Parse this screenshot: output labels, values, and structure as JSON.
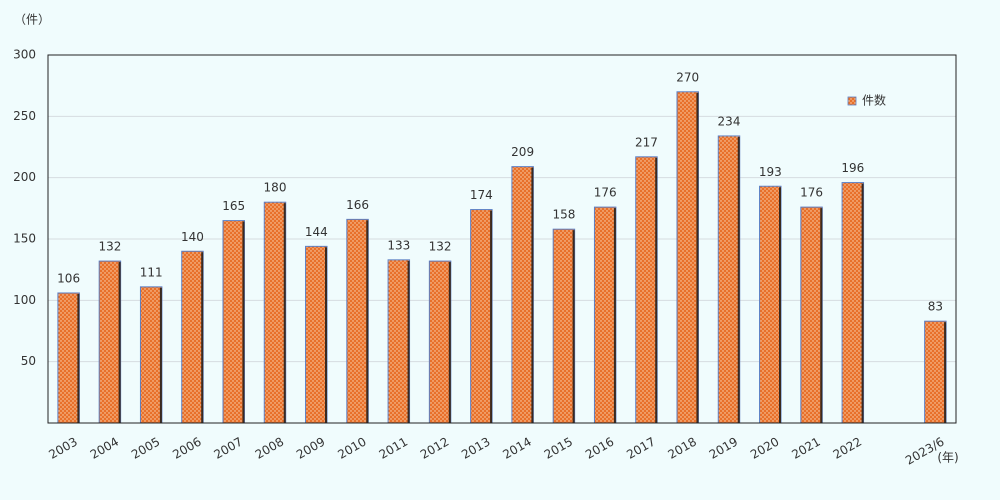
{
  "chart_data": {
    "type": "bar",
    "y_label": "（件）",
    "x_unit": "(年)",
    "categories": [
      "2003",
      "2004",
      "2005",
      "2006",
      "2007",
      "2008",
      "2009",
      "2010",
      "2011",
      "2012",
      "2013",
      "2014",
      "2015",
      "2016",
      "2017",
      "2018",
      "2019",
      "2020",
      "2021",
      "2022",
      null,
      "2023/6"
    ],
    "series": [
      {
        "name": "件数",
        "color": "#e8702a",
        "values": [
          106,
          132,
          111,
          140,
          165,
          180,
          144,
          166,
          133,
          132,
          174,
          209,
          158,
          176,
          217,
          270,
          234,
          193,
          176,
          196,
          null,
          83
        ]
      }
    ],
    "ylim": [
      0,
      300
    ],
    "yticks": [
      50,
      100,
      150,
      200,
      250,
      300
    ],
    "grid": true,
    "legend": "top-right"
  }
}
